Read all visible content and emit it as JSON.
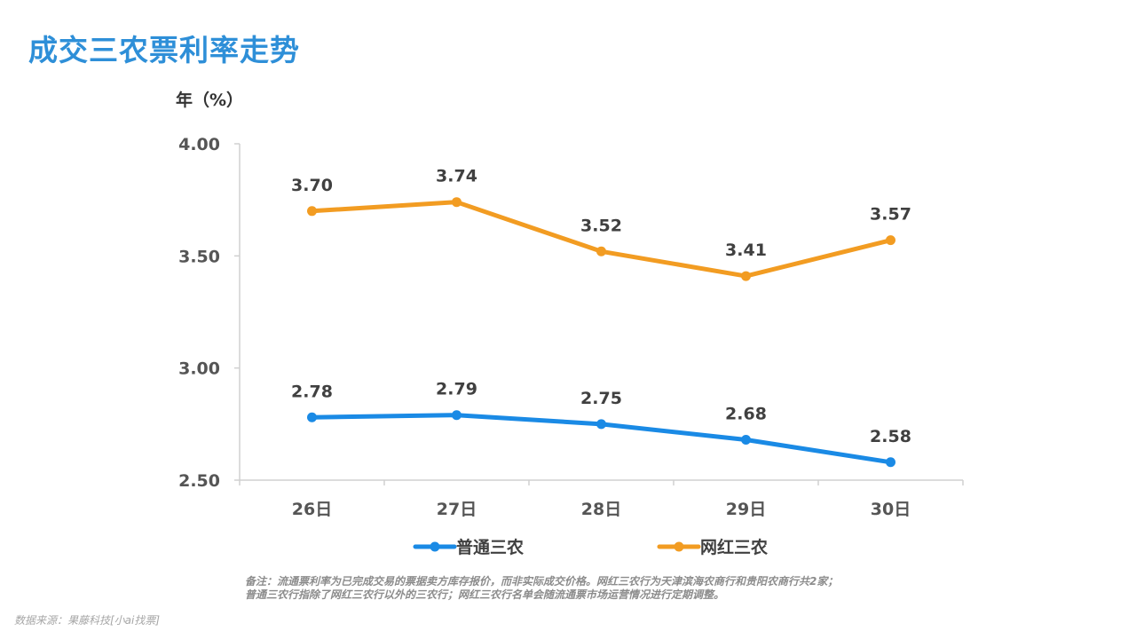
{
  "page": {
    "title": "成交三农票利率走势",
    "note_lines": [
      "备注：流通票利率为已完成交易的票据卖方库存报价，而非实际成交价格。网红三农行为天津滨海农商行和贵阳农商行共2家；",
      "普通三农行指除了网红三农行以外的三农行；网红三农行名单会随流通票市场运营情况进行定期调整。"
    ],
    "source": "数据来源：果藤科技[小ai找票]"
  },
  "chart_data": {
    "type": "line",
    "title": "",
    "ylabel": "年（%）",
    "xlabel": "",
    "categories": [
      "26日",
      "27日",
      "28日",
      "29日",
      "30日"
    ],
    "ylim": [
      2.5,
      4.0
    ],
    "yticks": [
      "4.00",
      "3.50",
      "3.00",
      "2.50"
    ],
    "ytick_values": [
      4.0,
      3.5,
      3.0,
      2.5
    ],
    "grid": false,
    "legend_position": "bottom",
    "series": [
      {
        "name": "普通三农",
        "color": "#1a8ae5",
        "values": [
          2.78,
          2.79,
          2.75,
          2.68,
          2.58
        ],
        "labels": [
          "2.78",
          "2.79",
          "2.75",
          "2.68",
          "2.58"
        ]
      },
      {
        "name": "网红三农",
        "color": "#f29c22",
        "values": [
          3.7,
          3.74,
          3.52,
          3.41,
          3.57
        ],
        "labels": [
          "3.70",
          "3.74",
          "3.52",
          "3.41",
          "3.57"
        ]
      }
    ]
  }
}
